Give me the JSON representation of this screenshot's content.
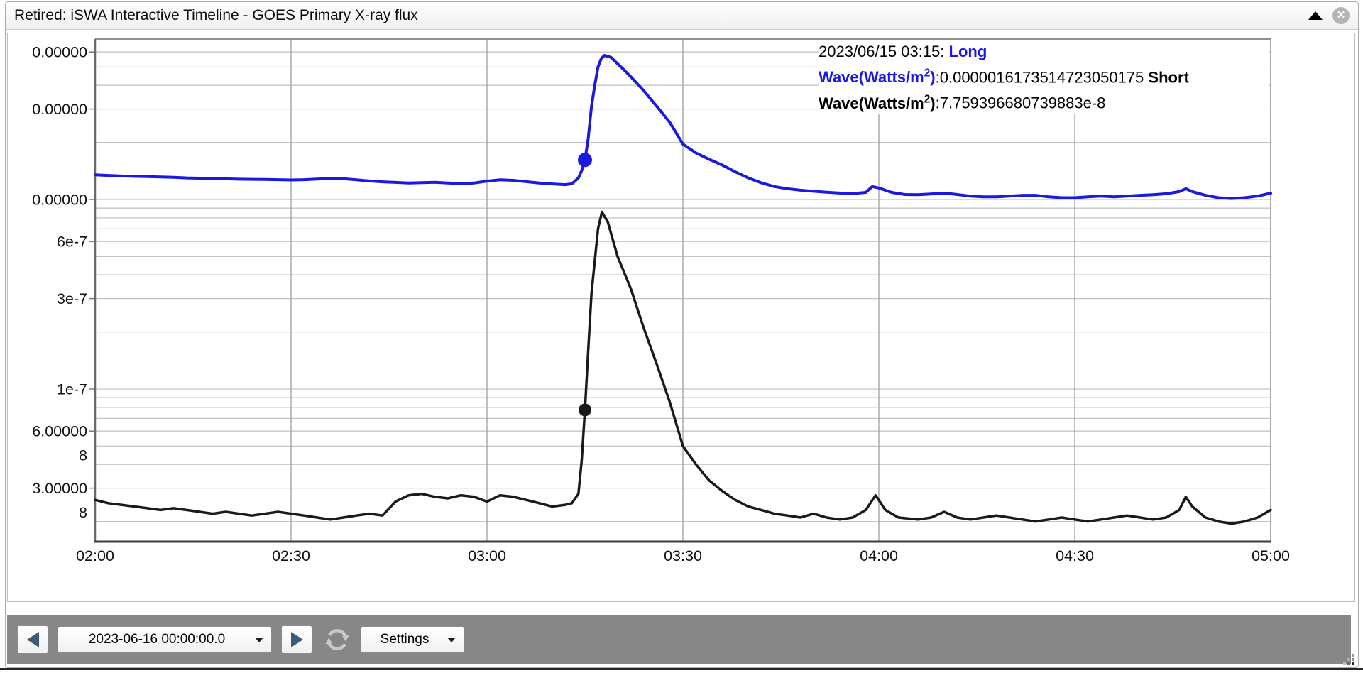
{
  "window": {
    "title": "Retired: iSWA Interactive Timeline - GOES Primary X-ray flux"
  },
  "icons": {
    "close_glyph": "✕"
  },
  "tooltip": {
    "timestamp": "2023/06/15 03:15:",
    "long_label_word1": "Long",
    "long_label_pre": "Wave(Watts/m",
    "long_label_sup": "2",
    "long_label_post": ")",
    "long_value": ":0.0000016173514723050175",
    "short_label_word1": "Short",
    "short_label_pre": "Wave(Watts/m",
    "short_label_sup": "2",
    "short_label_post": ")",
    "short_value": ":7.759396680739883e-8"
  },
  "toolbar": {
    "date_value": "2023-06-16 00:00:00.0",
    "settings_label": "Settings"
  },
  "chart_data": {
    "type": "line",
    "title": "",
    "xlabel": "",
    "ylabel": "",
    "x_axis": {
      "start_label": "02:00",
      "end_label": "05:00",
      "minutes_span": 180,
      "date": "2023/06/15",
      "grid": true
    },
    "x_ticks": [
      {
        "minute": 0,
        "label": "02:00"
      },
      {
        "minute": 30,
        "label": "02:30"
      },
      {
        "minute": 60,
        "label": "03:00"
      },
      {
        "minute": 90,
        "label": "03:30"
      },
      {
        "minute": 120,
        "label": "04:00"
      },
      {
        "minute": 150,
        "label": "04:30"
      },
      {
        "minute": 180,
        "label": "05:00"
      }
    ],
    "y_scale": {
      "type": "log",
      "min": 1.57e-08,
      "max": 7e-06,
      "unit": "Watts/m2",
      "grid": true
    },
    "y_ticks": [
      {
        "value": 6e-06,
        "label": "0.00000"
      },
      {
        "value": 3e-06,
        "label": "0.00000"
      },
      {
        "value": 1e-06,
        "label": "0.00000"
      },
      {
        "value": 6e-07,
        "label": "6e-7"
      },
      {
        "value": 3e-07,
        "label": "3e-7"
      },
      {
        "value": 1e-07,
        "label": "1e-7"
      },
      {
        "value": 6e-08,
        "label": "6.00000|8"
      },
      {
        "value": 3e-08,
        "label": "3.00000|8"
      }
    ],
    "series": [
      {
        "name": "Long Wave(Watts/m2)",
        "color": "#1b18e0",
        "width": 4,
        "points": [
          [
            0,
            1.35e-06
          ],
          [
            2,
            1.34e-06
          ],
          [
            4,
            1.33e-06
          ],
          [
            6,
            1.325e-06
          ],
          [
            8,
            1.32e-06
          ],
          [
            10,
            1.315e-06
          ],
          [
            12,
            1.31e-06
          ],
          [
            14,
            1.3e-06
          ],
          [
            16,
            1.295e-06
          ],
          [
            18,
            1.29e-06
          ],
          [
            20,
            1.285e-06
          ],
          [
            22,
            1.28e-06
          ],
          [
            24,
            1.278e-06
          ],
          [
            26,
            1.275e-06
          ],
          [
            28,
            1.272e-06
          ],
          [
            30,
            1.268e-06
          ],
          [
            32,
            1.272e-06
          ],
          [
            34,
            1.282e-06
          ],
          [
            36,
            1.292e-06
          ],
          [
            38,
            1.288e-06
          ],
          [
            40,
            1.27e-06
          ],
          [
            42,
            1.252e-06
          ],
          [
            44,
            1.24e-06
          ],
          [
            46,
            1.231e-06
          ],
          [
            48,
            1.222e-06
          ],
          [
            50,
            1.228e-06
          ],
          [
            52,
            1.232e-06
          ],
          [
            54,
            1.222e-06
          ],
          [
            56,
            1.212e-06
          ],
          [
            58,
            1.222e-06
          ],
          [
            60,
            1.25e-06
          ],
          [
            62,
            1.27e-06
          ],
          [
            64,
            1.262e-06
          ],
          [
            66,
            1.242e-06
          ],
          [
            68,
            1.222e-06
          ],
          [
            70,
            1.208e-06
          ],
          [
            72,
            1.198e-06
          ],
          [
            73,
            1.21e-06
          ],
          [
            74,
            1.3e-06
          ],
          [
            74.5,
            1.42e-06
          ],
          [
            75,
            1.6173514723050175e-06
          ],
          [
            75.5,
            2.1e-06
          ],
          [
            76,
            3.1e-06
          ],
          [
            76.5,
            4e-06
          ],
          [
            77,
            5e-06
          ],
          [
            77.5,
            5.55e-06
          ],
          [
            78,
            5.76e-06
          ],
          [
            79,
            5.62e-06
          ],
          [
            80,
            5.2e-06
          ],
          [
            81,
            4.82e-06
          ],
          [
            82,
            4.45e-06
          ],
          [
            84,
            3.75e-06
          ],
          [
            86,
            3.1e-06
          ],
          [
            88,
            2.55e-06
          ],
          [
            90,
            1.96e-06
          ],
          [
            92,
            1.76e-06
          ],
          [
            94,
            1.63e-06
          ],
          [
            96,
            1.52e-06
          ],
          [
            98,
            1.4e-06
          ],
          [
            100,
            1.3e-06
          ],
          [
            102,
            1.225e-06
          ],
          [
            104,
            1.17e-06
          ],
          [
            106,
            1.14e-06
          ],
          [
            108,
            1.12e-06
          ],
          [
            110,
            1.105e-06
          ],
          [
            112,
            1.092e-06
          ],
          [
            114,
            1.082e-06
          ],
          [
            116,
            1.075e-06
          ],
          [
            118,
            1.09e-06
          ],
          [
            119,
            1.17e-06
          ],
          [
            120,
            1.15e-06
          ],
          [
            122,
            1.09e-06
          ],
          [
            124,
            1.062e-06
          ],
          [
            126,
            1.06e-06
          ],
          [
            128,
            1.07e-06
          ],
          [
            130,
            1.082e-06
          ],
          [
            132,
            1.062e-06
          ],
          [
            134,
            1.042e-06
          ],
          [
            136,
            1.032e-06
          ],
          [
            138,
            1.032e-06
          ],
          [
            140,
            1.042e-06
          ],
          [
            142,
            1.052e-06
          ],
          [
            144,
            1.052e-06
          ],
          [
            146,
            1.032e-06
          ],
          [
            148,
            1.022e-06
          ],
          [
            150,
            1.022e-06
          ],
          [
            152,
            1.032e-06
          ],
          [
            154,
            1.042e-06
          ],
          [
            156,
            1.032e-06
          ],
          [
            158,
            1.042e-06
          ],
          [
            160,
            1.052e-06
          ],
          [
            162,
            1.06e-06
          ],
          [
            164,
            1.072e-06
          ],
          [
            166,
            1.1e-06
          ],
          [
            167,
            1.14e-06
          ],
          [
            168,
            1.1e-06
          ],
          [
            170,
            1.052e-06
          ],
          [
            172,
            1.022e-06
          ],
          [
            174,
            1.012e-06
          ],
          [
            176,
            1.022e-06
          ],
          [
            178,
            1.042e-06
          ],
          [
            180,
            1.08e-06
          ]
        ]
      },
      {
        "name": "Short Wave(Watts/m2)",
        "color": "#1a1a1a",
        "width": 3.5,
        "points": [
          [
            0,
            2.6e-08
          ],
          [
            2,
            2.5e-08
          ],
          [
            4,
            2.45e-08
          ],
          [
            6,
            2.4e-08
          ],
          [
            8,
            2.35e-08
          ],
          [
            10,
            2.3e-08
          ],
          [
            12,
            2.35e-08
          ],
          [
            14,
            2.3e-08
          ],
          [
            16,
            2.25e-08
          ],
          [
            18,
            2.2e-08
          ],
          [
            20,
            2.25e-08
          ],
          [
            22,
            2.2e-08
          ],
          [
            24,
            2.15e-08
          ],
          [
            26,
            2.2e-08
          ],
          [
            28,
            2.25e-08
          ],
          [
            30,
            2.2e-08
          ],
          [
            32,
            2.15e-08
          ],
          [
            34,
            2.1e-08
          ],
          [
            36,
            2.05e-08
          ],
          [
            38,
            2.1e-08
          ],
          [
            40,
            2.15e-08
          ],
          [
            42,
            2.2e-08
          ],
          [
            44,
            2.15e-08
          ],
          [
            46,
            2.55e-08
          ],
          [
            48,
            2.75e-08
          ],
          [
            50,
            2.8e-08
          ],
          [
            52,
            2.7e-08
          ],
          [
            54,
            2.65e-08
          ],
          [
            56,
            2.75e-08
          ],
          [
            58,
            2.7e-08
          ],
          [
            60,
            2.55e-08
          ],
          [
            62,
            2.75e-08
          ],
          [
            64,
            2.7e-08
          ],
          [
            66,
            2.6e-08
          ],
          [
            68,
            2.5e-08
          ],
          [
            70,
            2.4e-08
          ],
          [
            72,
            2.45e-08
          ],
          [
            73,
            2.5e-08
          ],
          [
            74,
            2.8e-08
          ],
          [
            74.5,
            4.2e-08
          ],
          [
            75,
            7.759396680739883e-08
          ],
          [
            75.5,
            1.6e-07
          ],
          [
            76,
            3.2e-07
          ],
          [
            77,
            7e-07
          ],
          [
            77.6,
            8.6e-07
          ],
          [
            78.5,
            7.6e-07
          ],
          [
            80,
            5e-07
          ],
          [
            82,
            3.4e-07
          ],
          [
            84,
            2.1e-07
          ],
          [
            86,
            1.35e-07
          ],
          [
            88,
            8.5e-08
          ],
          [
            90,
            5e-08
          ],
          [
            92,
            4e-08
          ],
          [
            94,
            3.3e-08
          ],
          [
            96,
            2.9e-08
          ],
          [
            98,
            2.6e-08
          ],
          [
            100,
            2.4e-08
          ],
          [
            102,
            2.3e-08
          ],
          [
            104,
            2.2e-08
          ],
          [
            106,
            2.15e-08
          ],
          [
            108,
            2.1e-08
          ],
          [
            110,
            2.2e-08
          ],
          [
            112,
            2.1e-08
          ],
          [
            114,
            2.05e-08
          ],
          [
            116,
            2.1e-08
          ],
          [
            118,
            2.3e-08
          ],
          [
            119.5,
            2.75e-08
          ],
          [
            121,
            2.3e-08
          ],
          [
            123,
            2.1e-08
          ],
          [
            126,
            2.05e-08
          ],
          [
            128,
            2.1e-08
          ],
          [
            130,
            2.25e-08
          ],
          [
            132,
            2.1e-08
          ],
          [
            134,
            2.05e-08
          ],
          [
            136,
            2.1e-08
          ],
          [
            138,
            2.15e-08
          ],
          [
            140,
            2.1e-08
          ],
          [
            142,
            2.05e-08
          ],
          [
            144,
            2e-08
          ],
          [
            146,
            2.05e-08
          ],
          [
            148,
            2.1e-08
          ],
          [
            150,
            2.05e-08
          ],
          [
            152,
            2e-08
          ],
          [
            154,
            2.05e-08
          ],
          [
            156,
            2.1e-08
          ],
          [
            158,
            2.15e-08
          ],
          [
            160,
            2.1e-08
          ],
          [
            162,
            2.05e-08
          ],
          [
            164,
            2.1e-08
          ],
          [
            166,
            2.3e-08
          ],
          [
            167,
            2.7e-08
          ],
          [
            168,
            2.4e-08
          ],
          [
            170,
            2.1e-08
          ],
          [
            172,
            2e-08
          ],
          [
            174,
            1.95e-08
          ],
          [
            176,
            2e-08
          ],
          [
            178,
            2.1e-08
          ],
          [
            180,
            2.3e-08
          ]
        ]
      }
    ],
    "markers": [
      {
        "series": 0,
        "minute": 75,
        "value": 1.6173514723050175e-06,
        "radius": 10
      },
      {
        "series": 1,
        "minute": 75,
        "value": 7.759396680739883e-08,
        "radius": 9
      }
    ]
  }
}
